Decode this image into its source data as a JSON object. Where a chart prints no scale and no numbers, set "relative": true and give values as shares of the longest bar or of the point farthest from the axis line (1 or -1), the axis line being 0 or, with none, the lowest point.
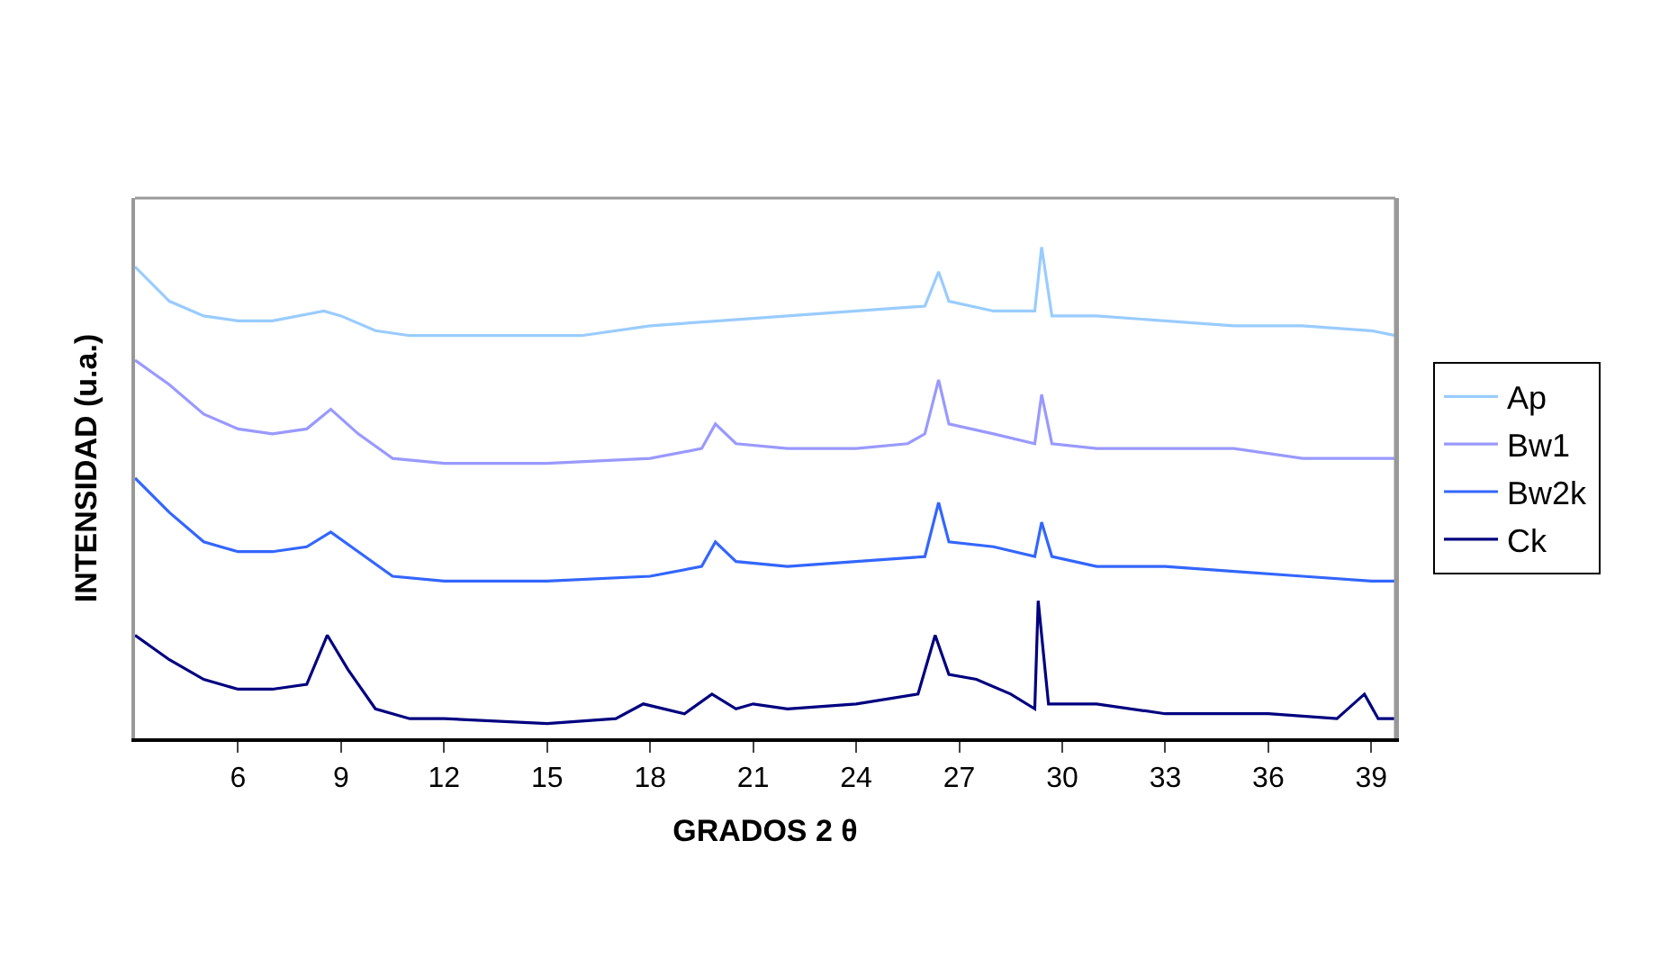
{
  "chart_data": {
    "type": "line",
    "relative": true,
    "xlabel": "GRADOS 2 θ",
    "ylabel": "INTENSIDAD (u.a.)",
    "xlim": [
      3,
      39.7
    ],
    "xticks": [
      6,
      9,
      12,
      15,
      18,
      21,
      24,
      27,
      30,
      33,
      36,
      39
    ],
    "legend": "right",
    "marker": "none",
    "line_style": "solid",
    "series": [
      {
        "name": "Ap",
        "color": "#99ccff",
        "x": [
          3,
          4,
          5,
          6,
          7,
          8.5,
          9,
          10,
          11,
          12,
          14,
          16,
          18,
          20,
          22,
          24,
          26,
          26.4,
          26.7,
          28,
          29.2,
          29.4,
          29.7,
          31,
          33,
          35,
          37,
          39,
          39.7
        ],
        "values": [
          0.96,
          0.89,
          0.86,
          0.85,
          0.85,
          0.87,
          0.86,
          0.83,
          0.82,
          0.82,
          0.82,
          0.82,
          0.84,
          0.85,
          0.86,
          0.87,
          0.88,
          0.95,
          0.89,
          0.87,
          0.87,
          1.0,
          0.86,
          0.86,
          0.85,
          0.84,
          0.84,
          0.83,
          0.82
        ]
      },
      {
        "name": "Bw1",
        "color": "#9999ff",
        "x": [
          3,
          4,
          5,
          6,
          7,
          8,
          8.7,
          9.5,
          10.5,
          12,
          15,
          18,
          19.5,
          19.9,
          20.5,
          22,
          24,
          25.5,
          26,
          26.4,
          26.7,
          28,
          29.2,
          29.4,
          29.7,
          31,
          33,
          35,
          37,
          39,
          39.7
        ],
        "values": [
          0.77,
          0.72,
          0.66,
          0.63,
          0.62,
          0.63,
          0.67,
          0.62,
          0.57,
          0.56,
          0.56,
          0.57,
          0.59,
          0.64,
          0.6,
          0.59,
          0.59,
          0.6,
          0.62,
          0.73,
          0.64,
          0.62,
          0.6,
          0.7,
          0.6,
          0.59,
          0.59,
          0.59,
          0.57,
          0.57,
          0.57
        ]
      },
      {
        "name": "Bw2k",
        "color": "#3366ff",
        "x": [
          3,
          4,
          5,
          6,
          7,
          8,
          8.7,
          9.5,
          10.5,
          12,
          15,
          18,
          19.5,
          19.9,
          20.5,
          22,
          24,
          26,
          26.4,
          26.7,
          28,
          29.2,
          29.4,
          29.7,
          31,
          33,
          35,
          37,
          39,
          39.7
        ],
        "values": [
          0.53,
          0.46,
          0.4,
          0.38,
          0.38,
          0.39,
          0.42,
          0.38,
          0.33,
          0.32,
          0.32,
          0.33,
          0.35,
          0.4,
          0.36,
          0.35,
          0.36,
          0.37,
          0.48,
          0.4,
          0.39,
          0.37,
          0.44,
          0.37,
          0.35,
          0.35,
          0.34,
          0.33,
          0.32,
          0.32
        ]
      },
      {
        "name": "Ck",
        "color": "#000080",
        "x": [
          3,
          4,
          5,
          6,
          7,
          8,
          8.6,
          9.2,
          10,
          11,
          12,
          15,
          17,
          17.8,
          19,
          19.8,
          20.5,
          21,
          22,
          24,
          25.8,
          26.3,
          26.7,
          27.5,
          28.5,
          29.2,
          29.3,
          29.6,
          31,
          33,
          35,
          36,
          38,
          38.8,
          39.2,
          39.7
        ],
        "values": [
          0.21,
          0.16,
          0.12,
          0.1,
          0.1,
          0.11,
          0.21,
          0.14,
          0.06,
          0.04,
          0.04,
          0.03,
          0.04,
          0.07,
          0.05,
          0.09,
          0.06,
          0.07,
          0.06,
          0.07,
          0.09,
          0.21,
          0.13,
          0.12,
          0.09,
          0.06,
          0.28,
          0.07,
          0.07,
          0.05,
          0.05,
          0.05,
          0.04,
          0.09,
          0.04,
          0.04
        ]
      }
    ]
  }
}
